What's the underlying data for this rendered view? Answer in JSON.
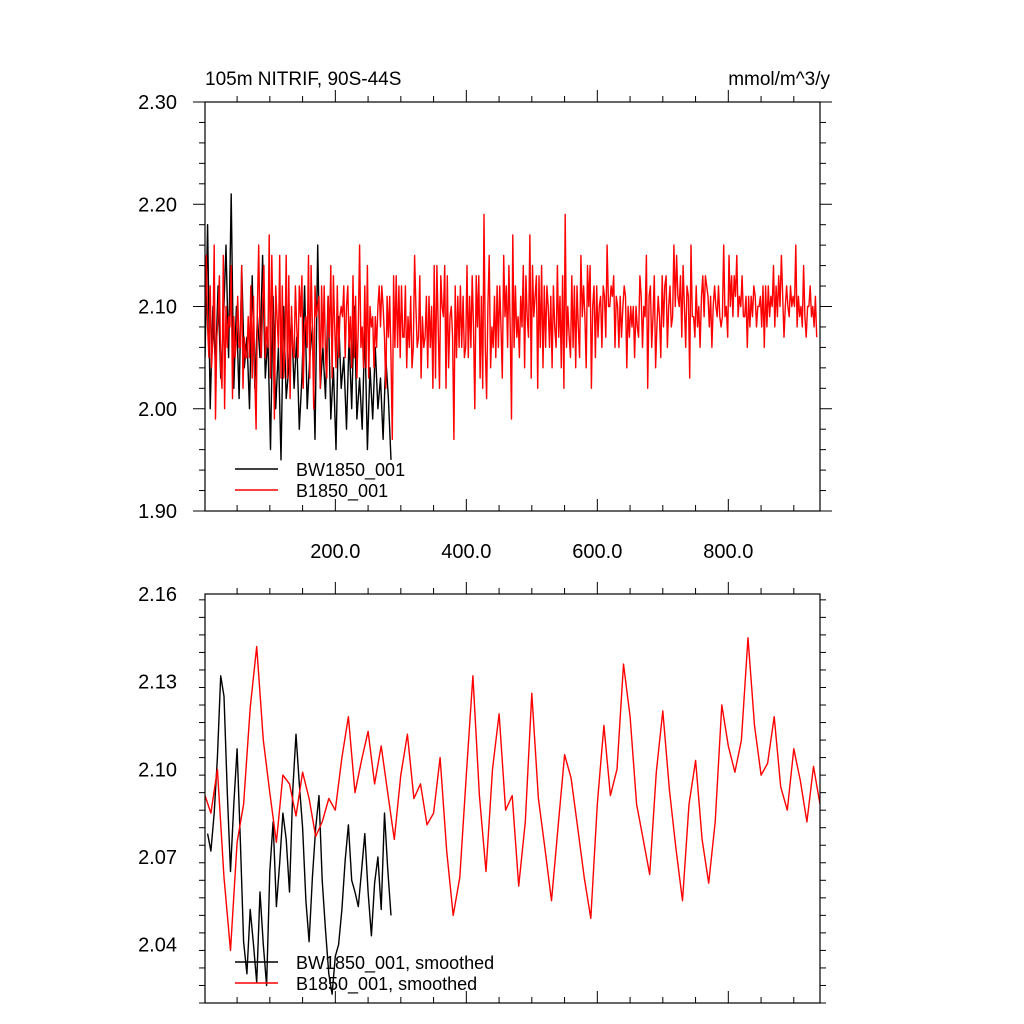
{
  "chart_data": [
    {
      "type": "line",
      "title_left": "105m NITRIF, 90S-44S",
      "title_right": "mmol/m^3/y",
      "xlim": [
        1,
        940
      ],
      "ylim": [
        1.9,
        2.3
      ],
      "xticks": [
        200,
        400,
        600,
        800
      ],
      "xtick_labels": [
        "200.0",
        "400.0",
        "600.0",
        "800.0"
      ],
      "yticks": [
        1.9,
        2.0,
        2.1,
        2.2,
        2.3
      ],
      "ytick_labels": [
        "1.90",
        "2.00",
        "2.10",
        "2.20",
        "2.30"
      ],
      "legend_position": "bottom-left",
      "series": [
        {
          "name": "BW1850_001",
          "color": "#000000",
          "x_start": 1,
          "x_step": 4,
          "values": [
            2.05,
            2.18,
            2.0,
            2.1,
            2.04,
            2.12,
            2.03,
            2.08,
            2.16,
            2.05,
            2.21,
            2.02,
            2.1,
            2.01,
            2.14,
            2.04,
            2.07,
            2.0,
            2.13,
            2.02,
            2.09,
            2.05,
            2.15,
            2.03,
            2.07,
            1.96,
            2.11,
            2.0,
            2.06,
            1.95,
            2.1,
            2.01,
            2.04,
            2.09,
            2.02,
            2.07,
            1.98,
            2.03,
            2.12,
            2.0,
            2.05,
            2.08,
            1.97,
            2.16,
            2.02,
            2.06,
            2.01,
            2.11,
            1.99,
            2.04,
            1.96,
            2.09,
            2.02,
            2.05,
            1.98,
            2.07,
            2.0,
            2.1,
            1.99,
            2.03,
            1.98,
            2.08,
            1.96,
            2.04,
            1.99,
            2.06,
            2.0,
            2.03,
            1.97,
            2.05,
            2.01,
            1.95
          ]
        },
        {
          "name": "B1850_001",
          "color": "#ff0000",
          "x_start": 1,
          "x_step": 2,
          "values": [
            2.09,
            2.15,
            2.08,
            2.05,
            2.12,
            2.04,
            2.07,
            2.16,
            1.99,
            2.07,
            2.09,
            2.13,
            2.04,
            2.02,
            2.15,
            2.0,
            2.1,
            2.06,
            2.09,
            2.08,
            2.14,
            2.01,
            2.09,
            2.05,
            2.07,
            2.11,
            2.06,
            2.06,
            2.14,
            2.02,
            2.07,
            2.05,
            2.05,
            2.09,
            2.05,
            2.12,
            2.03,
            2.11,
            2.03,
            1.98,
            2.1,
            2.16,
            2.07,
            2.05,
            2.1,
            2.14,
            2.05,
            2.08,
            2.06,
            2.17,
            2.03,
            2.15,
            2.08,
            1.99,
            2.12,
            2.09,
            2.06,
            2.15,
            2.03,
            2.12,
            2.03,
            2.06,
            2.15,
            2.03,
            2.13,
            2.01,
            2.1,
            2.06,
            2.05,
            2.12,
            2.08,
            2.05,
            2.12,
            2.09,
            2.13,
            2.02,
            2.08,
            2.09,
            2.06,
            2.15,
            2.03,
            2.14,
            2.08,
            2.0,
            2.12,
            2.09,
            2.1,
            2.11,
            2.02,
            2.12,
            2.06,
            2.12,
            2.05,
            2.03,
            2.11,
            2.07,
            2.14,
            2.03,
            2.13,
            2.08,
            2.04,
            2.12,
            2.05,
            2.09,
            2.1,
            2.09,
            2.12,
            2.05,
            2.1,
            2.12,
            2.06,
            2.09,
            2.04,
            2.13,
            2.05,
            2.11,
            2.03,
            2.08,
            2.16,
            2.06,
            2.08,
            2.04,
            2.12,
            2.04,
            2.14,
            2.03,
            2.1,
            2.08,
            2.09,
            2.04,
            2.09,
            2.06,
            2.1,
            2.12,
            2.08,
            2.12,
            2.1,
            2.07,
            2.02,
            2.11,
            2.07,
            2.11,
            2.05,
            1.97,
            2.13,
            2.06,
            2.13,
            2.06,
            2.12,
            2.05,
            2.12,
            2.07,
            2.07,
            2.12,
            2.04,
            2.09,
            2.06,
            2.11,
            2.04,
            2.06,
            2.15,
            2.1,
            2.06,
            2.07,
            2.13,
            2.03,
            2.09,
            2.06,
            2.07,
            2.11,
            2.04,
            2.11,
            2.06,
            2.1,
            2.02,
            2.14,
            2.03,
            2.14,
            2.08,
            2.02,
            2.13,
            2.1,
            2.09,
            2.14,
            2.02,
            2.13,
            2.04,
            2.09,
            2.1,
            2.07,
            1.97,
            2.12,
            2.05,
            2.11,
            2.06,
            2.12,
            2.06,
            2.11,
            2.05,
            2.06,
            2.14,
            2.05,
            2.11,
            2.06,
            2.13,
            2.08,
            2.0,
            2.13,
            2.08,
            2.13,
            2.03,
            2.11,
            2.02,
            2.19,
            2.06,
            2.01,
            2.1,
            2.15,
            2.04,
            2.08,
            2.06,
            2.11,
            2.05,
            2.12,
            2.06,
            2.12,
            2.08,
            2.03,
            2.15,
            2.09,
            2.12,
            2.06,
            2.14,
            2.08,
            1.99,
            2.17,
            2.06,
            2.12,
            2.07,
            2.09,
            2.05,
            2.11,
            2.08,
            2.14,
            2.04,
            2.13,
            2.09,
            2.07,
            2.17,
            2.03,
            2.14,
            2.09,
            2.11,
            2.13,
            2.02,
            2.13,
            2.06,
            2.14,
            2.04,
            2.12,
            2.06,
            2.12,
            2.1,
            2.06,
            2.11,
            2.04,
            2.12,
            2.08,
            2.06,
            2.14,
            2.07,
            2.11,
            2.04,
            2.13,
            2.02,
            2.19,
            2.06,
            2.1,
            2.07,
            2.05,
            2.13,
            2.06,
            2.12,
            2.04,
            2.12,
            2.08,
            2.05,
            2.15,
            2.09,
            2.12,
            2.09,
            2.04,
            2.14,
            2.1,
            2.14,
            2.02,
            2.1,
            2.12,
            2.05,
            2.12,
            2.07,
            2.1,
            2.11,
            2.06,
            2.12,
            2.11,
            2.07,
            2.16,
            2.1,
            2.1,
            2.12,
            2.11,
            2.13,
            2.06,
            2.11,
            2.1,
            2.06,
            2.11,
            2.07,
            2.1,
            2.12,
            2.11,
            2.04,
            2.1,
            2.07,
            2.1,
            2.08,
            2.1,
            2.05,
            2.1,
            2.08,
            2.07,
            2.13,
            2.11,
            2.06,
            2.1,
            2.09,
            2.15,
            2.02,
            2.11,
            2.12,
            2.06,
            2.09,
            2.13,
            2.04,
            2.08,
            2.11,
            2.09,
            2.05,
            2.13,
            2.08,
            2.12,
            2.13,
            2.06,
            2.1,
            2.12,
            2.08,
            2.09,
            2.16,
            2.1,
            2.15,
            2.11,
            2.1,
            2.13,
            2.07,
            2.14,
            2.1,
            2.06,
            2.12,
            2.11,
            2.03,
            2.16,
            2.09,
            2.09,
            2.07,
            2.12,
            2.08,
            2.1,
            2.06,
            2.11,
            2.13,
            2.09,
            2.13,
            2.12,
            2.11,
            2.08,
            2.11,
            2.06,
            2.1,
            2.12,
            2.1,
            2.09,
            2.12,
            2.09,
            2.08,
            2.09,
            2.16,
            2.09,
            2.1,
            2.07,
            2.15,
            2.1,
            2.13,
            2.09,
            2.13,
            2.11,
            2.15,
            2.09,
            2.11,
            2.1,
            2.13,
            2.09,
            2.09,
            2.11,
            2.06,
            2.11,
            2.08,
            2.11,
            2.09,
            2.12,
            2.11,
            2.08,
            2.1,
            2.1,
            2.11,
            2.08,
            2.12,
            2.06,
            2.12,
            2.08,
            2.12,
            2.09,
            2.11,
            2.1,
            2.14,
            2.08,
            2.12,
            2.09,
            2.13,
            2.1,
            2.15,
            2.11,
            2.07,
            2.1,
            2.12,
            2.1,
            2.09,
            2.12,
            2.1,
            2.11,
            2.1,
            2.16,
            2.08,
            2.11,
            2.09,
            2.1,
            2.08,
            2.14,
            2.09,
            2.07,
            2.1,
            2.1,
            2.12,
            2.09,
            2.1,
            2.08,
            2.11,
            2.07
          ]
        }
      ]
    },
    {
      "type": "line",
      "xlim": [
        1,
        940
      ],
      "ylim": [
        2.02,
        2.16
      ],
      "yticks": [
        2.04,
        2.07,
        2.1,
        2.13,
        2.16
      ],
      "ytick_labels": [
        "2.04",
        "2.07",
        "2.10",
        "2.13",
        "2.16"
      ],
      "legend_position": "bottom-left",
      "series": [
        {
          "name": "BW1850_001, smoothed",
          "color": "#000000",
          "x": [
            5,
            10,
            15,
            20,
            25,
            30,
            35,
            40,
            45,
            50,
            55,
            60,
            65,
            70,
            75,
            80,
            85,
            90,
            95,
            100,
            105,
            110,
            115,
            120,
            125,
            130,
            135,
            140,
            145,
            150,
            155,
            160,
            165,
            170,
            175,
            180,
            185,
            190,
            195,
            200,
            205,
            210,
            215,
            220,
            225,
            230,
            235,
            240,
            245,
            250,
            255,
            260,
            265,
            270,
            275,
            280,
            285
          ],
          "values": [
            2.078,
            2.072,
            2.085,
            2.104,
            2.132,
            2.125,
            2.092,
            2.065,
            2.088,
            2.107,
            2.075,
            2.041,
            2.03,
            2.052,
            2.04,
            2.027,
            2.058,
            2.04,
            2.026,
            2.065,
            2.082,
            2.053,
            2.068,
            2.085,
            2.076,
            2.058,
            2.093,
            2.112,
            2.095,
            2.08,
            2.055,
            2.041,
            2.063,
            2.08,
            2.091,
            2.062,
            2.045,
            2.03,
            2.023,
            2.036,
            2.04,
            2.052,
            2.069,
            2.081,
            2.062,
            2.058,
            2.053,
            2.065,
            2.078,
            2.058,
            2.043,
            2.061,
            2.07,
            2.052,
            2.085,
            2.066,
            2.05
          ]
        },
        {
          "name": "B1850_001, smoothed",
          "color": "#ff0000",
          "x": [
            1,
            10,
            20,
            30,
            40,
            50,
            60,
            70,
            80,
            90,
            100,
            110,
            120,
            130,
            140,
            150,
            160,
            170,
            180,
            190,
            200,
            210,
            220,
            230,
            240,
            250,
            260,
            270,
            280,
            290,
            300,
            310,
            320,
            330,
            340,
            350,
            360,
            370,
            380,
            390,
            400,
            410,
            420,
            430,
            440,
            450,
            460,
            470,
            480,
            490,
            500,
            510,
            520,
            530,
            540,
            550,
            560,
            570,
            580,
            590,
            600,
            610,
            620,
            630,
            640,
            650,
            660,
            670,
            680,
            690,
            700,
            710,
            720,
            730,
            740,
            750,
            760,
            770,
            780,
            790,
            800,
            810,
            820,
            830,
            840,
            850,
            860,
            870,
            880,
            890,
            900,
            910,
            920,
            930,
            940
          ],
          "values": [
            2.091,
            2.085,
            2.1,
            2.063,
            2.038,
            2.075,
            2.088,
            2.121,
            2.142,
            2.11,
            2.092,
            2.075,
            2.098,
            2.095,
            2.084,
            2.099,
            2.09,
            2.077,
            2.082,
            2.09,
            2.086,
            2.104,
            2.118,
            2.092,
            2.103,
            2.113,
            2.095,
            2.108,
            2.092,
            2.076,
            2.098,
            2.112,
            2.09,
            2.095,
            2.081,
            2.085,
            2.104,
            2.072,
            2.05,
            2.063,
            2.098,
            2.132,
            2.091,
            2.065,
            2.1,
            2.119,
            2.086,
            2.091,
            2.06,
            2.082,
            2.126,
            2.09,
            2.073,
            2.055,
            2.08,
            2.105,
            2.097,
            2.08,
            2.063,
            2.049,
            2.088,
            2.115,
            2.091,
            2.1,
            2.136,
            2.118,
            2.088,
            2.076,
            2.064,
            2.099,
            2.12,
            2.093,
            2.073,
            2.055,
            2.088,
            2.103,
            2.076,
            2.061,
            2.082,
            2.122,
            2.108,
            2.099,
            2.11,
            2.145,
            2.115,
            2.098,
            2.102,
            2.118,
            2.094,
            2.086,
            2.107,
            2.096,
            2.082,
            2.101,
            2.088
          ]
        }
      ]
    }
  ]
}
